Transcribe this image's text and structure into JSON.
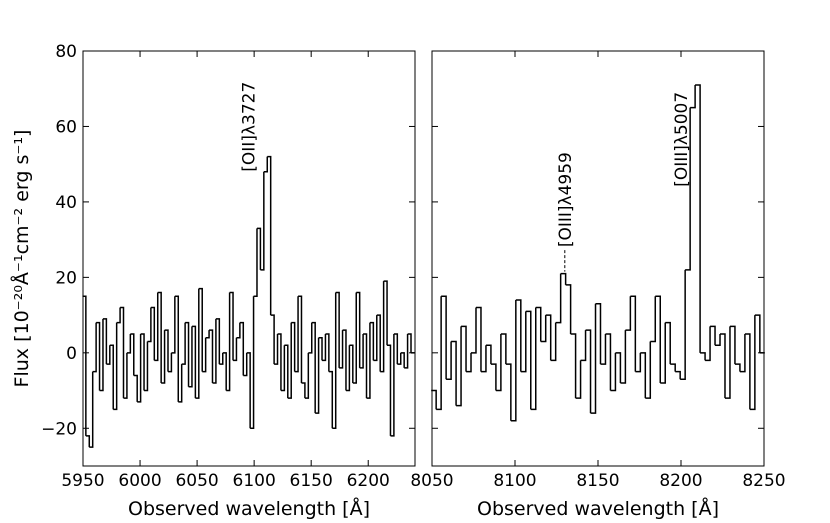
{
  "chart_data": [
    {
      "type": "line",
      "drawstyle": "steps-mid",
      "color": "#000000",
      "xlabel": "Observed wavelength [Å]",
      "ylabel": "Flux [10⁻²⁰Å⁻¹cm⁻² erg s⁻¹]",
      "xlim": [
        5950,
        6241
      ],
      "xticks": [
        5950,
        6000,
        6050,
        6100,
        6150,
        6200
      ],
      "ylim": [
        -30,
        80
      ],
      "yticks": [
        {
          "value": -20,
          "label": "−20"
        },
        0,
        20,
        40,
        60,
        80
      ],
      "annotations": [
        {
          "text": "[OII]λ3727",
          "x": 6095,
          "y": 48
        }
      ],
      "x": [
        5951,
        5954,
        5957,
        5960,
        5963,
        5966,
        5969,
        5972,
        5975,
        5978,
        5981,
        5984,
        5987,
        5990,
        5993,
        5996,
        5999,
        6002,
        6005,
        6008,
        6011,
        6014,
        6017,
        6020,
        6023,
        6026,
        6029,
        6032,
        6035,
        6038,
        6041,
        6044,
        6047,
        6050,
        6053,
        6056,
        6059,
        6062,
        6065,
        6068,
        6071,
        6074,
        6077,
        6080,
        6083,
        6086,
        6089,
        6092,
        6095,
        6098,
        6101,
        6104,
        6107,
        6110,
        6113,
        6116,
        6119,
        6122,
        6125,
        6128,
        6131,
        6134,
        6137,
        6140,
        6143,
        6146,
        6149,
        6152,
        6155,
        6158,
        6161,
        6164,
        6167,
        6170,
        6173,
        6176,
        6179,
        6182,
        6185,
        6188,
        6191,
        6194,
        6197,
        6200,
        6203,
        6206,
        6209,
        6212,
        6215,
        6218,
        6221,
        6224,
        6227,
        6230,
        6233,
        6236,
        6239
      ],
      "values": [
        15,
        -22,
        -25,
        -5,
        8,
        -10,
        9,
        -3,
        2,
        -15,
        8,
        12,
        -12,
        0,
        5,
        -6,
        -13,
        5,
        -10,
        3,
        12,
        -2,
        16,
        -8,
        6,
        -5,
        0,
        15,
        -13,
        -3,
        8,
        -9,
        7,
        -12,
        17,
        -5,
        4,
        6,
        -8,
        9,
        -3,
        0,
        -10,
        16,
        -2,
        4,
        8,
        -6,
        0,
        -20,
        15,
        33,
        22,
        48,
        52,
        10,
        -3,
        5,
        -10,
        2,
        -12,
        8,
        -5,
        15,
        -8,
        -12,
        0,
        8,
        -16,
        4,
        -2,
        5,
        -5,
        -20,
        16,
        -4,
        6,
        -10,
        2,
        -8,
        16,
        -4,
        5,
        -12,
        8,
        -2,
        10,
        -5,
        19,
        2,
        -22,
        5,
        -3,
        0,
        -4,
        5,
        0
      ]
    },
    {
      "type": "line",
      "drawstyle": "steps-mid",
      "color": "#000000",
      "xlabel": "Observed wavelength [Å]",
      "xlim": [
        8050,
        8250
      ],
      "xticks": [
        8050,
        8100,
        8150,
        8200,
        8250
      ],
      "ylim": [
        -30,
        80
      ],
      "annotations": [
        {
          "text": "[OIII]λ4959",
          "x": 8130,
          "y": 28
        },
        {
          "text": "[OIII]λ5007",
          "x": 8200,
          "y": 44
        }
      ],
      "x": [
        8051,
        8054,
        8057,
        8060,
        8063,
        8066,
        8069,
        8072,
        8075,
        8078,
        8081,
        8084,
        8087,
        8090,
        8093,
        8096,
        8099,
        8102,
        8105,
        8108,
        8111,
        8114,
        8117,
        8120,
        8123,
        8126,
        8129,
        8132,
        8135,
        8138,
        8141,
        8144,
        8147,
        8150,
        8153,
        8156,
        8159,
        8162,
        8165,
        8168,
        8171,
        8174,
        8177,
        8180,
        8183,
        8186,
        8189,
        8192,
        8195,
        8198,
        8201,
        8204,
        8207,
        8210,
        8213,
        8216,
        8219,
        8222,
        8225,
        8228,
        8231,
        8234,
        8237,
        8240,
        8243,
        8246,
        8249
      ],
      "values": [
        -10,
        -15,
        15,
        -7,
        3,
        -14,
        7,
        -5,
        0,
        12,
        -5,
        2,
        -3,
        -10,
        5,
        -3,
        -18,
        14,
        -5,
        11,
        -15,
        12,
        3,
        10,
        -2,
        8,
        21,
        18,
        5,
        -12,
        -2,
        6,
        -16,
        13,
        -3,
        5,
        -10,
        0,
        -8,
        6,
        15,
        -5,
        0,
        -12,
        3,
        15,
        -8,
        8,
        -3,
        -5,
        -7,
        22,
        65,
        71,
        0,
        -2,
        7,
        2,
        5,
        -12,
        7,
        -3,
        -5,
        5,
        -15,
        10,
        0
      ]
    }
  ]
}
